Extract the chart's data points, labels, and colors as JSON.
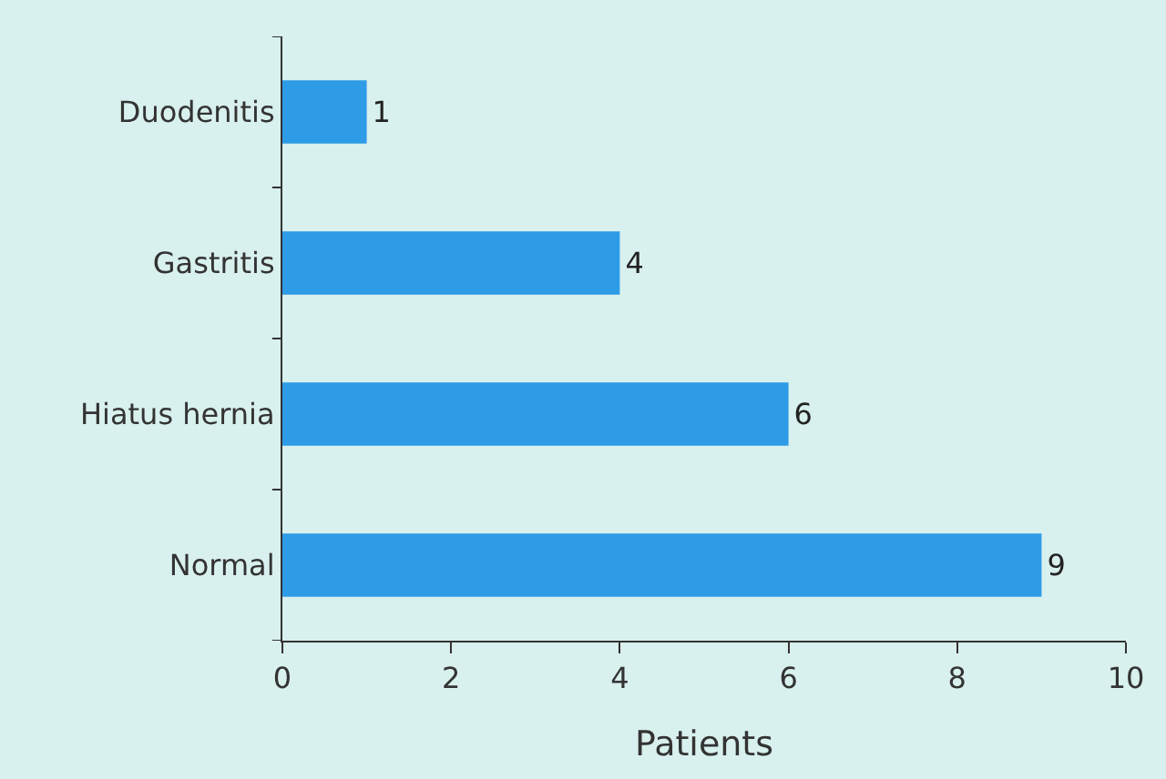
{
  "chart_data": {
    "type": "bar",
    "orientation": "horizontal",
    "xlabel": "Patients",
    "categories": [
      "Duodenitis",
      "Gastritis",
      "Hiatus hernia",
      "Normal"
    ],
    "values": [
      1,
      4,
      6,
      9
    ],
    "color": "#2e9be6",
    "xlim": [
      0,
      10
    ],
    "xticks": [
      0,
      2,
      4,
      6,
      8,
      10
    ],
    "grid": false,
    "legend": false,
    "data_labels": true
  }
}
